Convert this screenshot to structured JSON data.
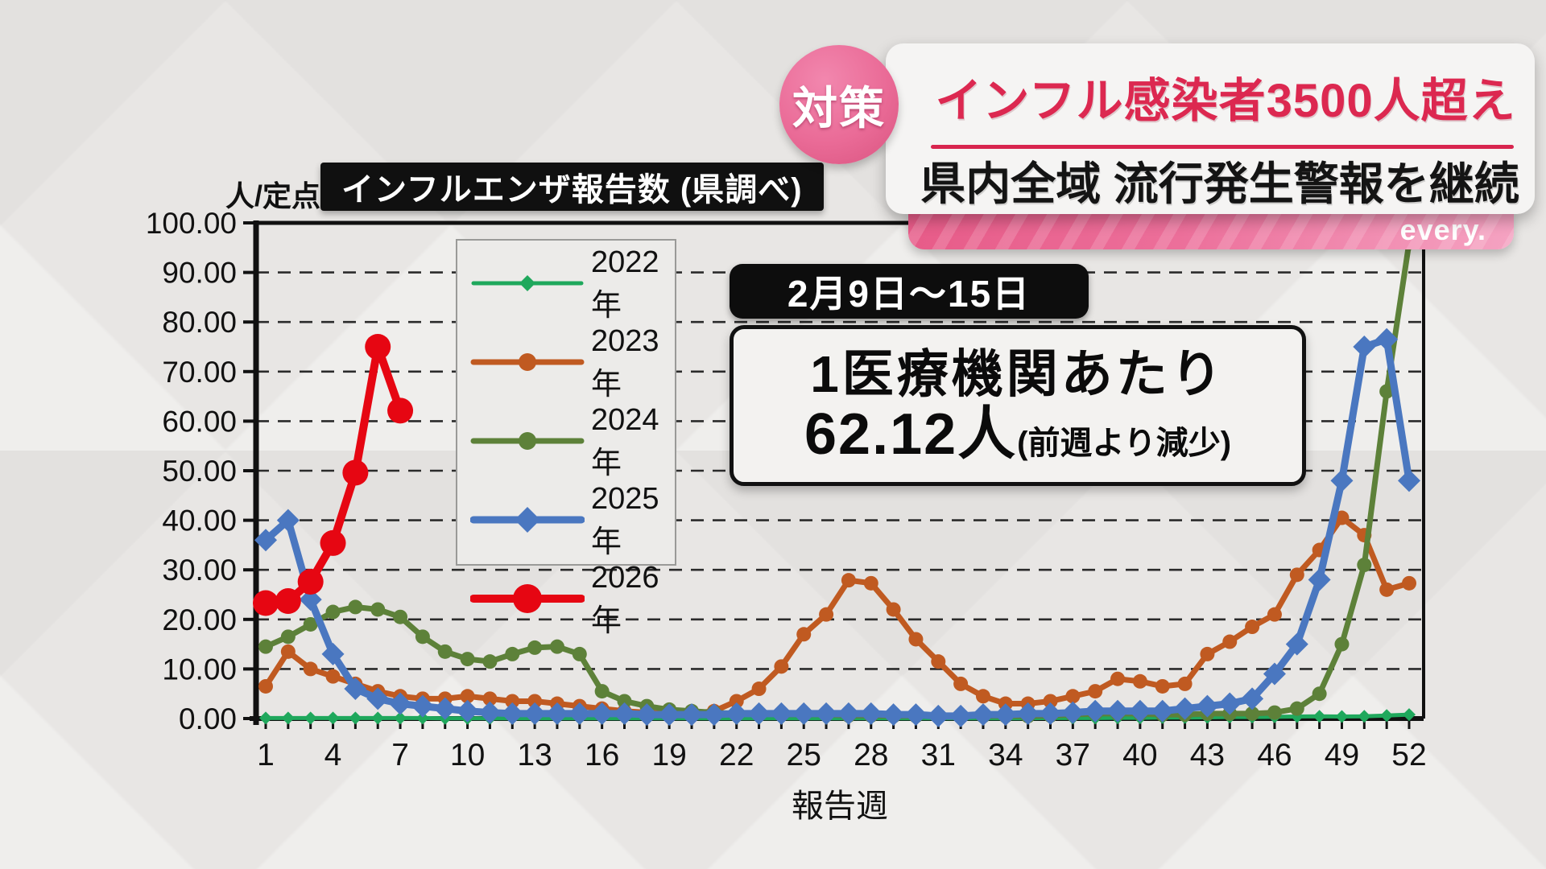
{
  "banner": {
    "badge": "対策",
    "headline": "インフル感染者3500人超え",
    "subheadline": "県内全域 流行発生警報を継続",
    "logo": "every.",
    "colors": {
      "badge_pink": "#ea6b97",
      "headline_red": "#dc2850",
      "bar_pink": "#e75b88"
    }
  },
  "chart": {
    "unit_label": "人/定点",
    "title": "インフルエンザ報告数 (県調べ)",
    "xlabel": "報告週",
    "y_tick_labels": [
      "0.00",
      "10.00",
      "20.00",
      "30.00",
      "40.00",
      "50.00",
      "60.00",
      "70.00",
      "80.00",
      "90.00",
      "100.00"
    ],
    "x_tick_weeks": [
      1,
      4,
      7,
      10,
      13,
      16,
      19,
      22,
      25,
      28,
      31,
      34,
      37,
      40,
      43,
      46,
      49,
      52
    ]
  },
  "callout": {
    "date_range": "2月9日～15日",
    "line1": "1医療機関あたり",
    "value": "62.12人",
    "note": "(前週より減少)"
  },
  "chart_data": {
    "type": "line",
    "title": "インフルエンザ報告数 (県調べ)",
    "xlabel": "報告週",
    "ylabel": "人/定点",
    "ylim": [
      0,
      100
    ],
    "xlim": [
      1,
      52
    ],
    "grid": "horizontal-dashed",
    "legend_position": "upper-left-inside",
    "x": [
      1,
      2,
      3,
      4,
      5,
      6,
      7,
      8,
      9,
      10,
      11,
      12,
      13,
      14,
      15,
      16,
      17,
      18,
      19,
      20,
      21,
      22,
      23,
      24,
      25,
      26,
      27,
      28,
      29,
      30,
      31,
      32,
      33,
      34,
      35,
      36,
      37,
      38,
      39,
      40,
      41,
      42,
      43,
      44,
      45,
      46,
      47,
      48,
      49,
      50,
      51,
      52
    ],
    "series": [
      {
        "name": "2022年",
        "color": "#1fa85c",
        "marker": "diamond",
        "line_width": 5,
        "marker_size": 8,
        "values": [
          0.1,
          0.1,
          0.1,
          0.1,
          0.1,
          0.1,
          0.1,
          0.1,
          0.05,
          0.05,
          0.05,
          0.05,
          0.05,
          0.05,
          0.05,
          0.05,
          0.05,
          0.05,
          0.05,
          0.05,
          0.05,
          0.05,
          0.05,
          0.05,
          0.05,
          0.05,
          0.05,
          0.05,
          0.05,
          0.05,
          0.05,
          0.05,
          0.05,
          0.05,
          0.05,
          0.1,
          0.1,
          0.1,
          0.15,
          0.15,
          0.2,
          0.2,
          0.25,
          0.3,
          0.3,
          0.35,
          0.4,
          0.45,
          0.4,
          0.45,
          0.6,
          0.8
        ]
      },
      {
        "name": "2023年",
        "color": "#c05a21",
        "marker": "circle",
        "line_width": 7,
        "marker_size": 9,
        "values": [
          6.5,
          13.5,
          10.0,
          8.5,
          7.0,
          5.5,
          4.5,
          4.0,
          4.0,
          4.5,
          4.0,
          3.5,
          3.5,
          3.0,
          2.5,
          2.0,
          1.5,
          1.2,
          1.0,
          1.0,
          1.5,
          3.5,
          6.0,
          10.5,
          17.0,
          21.0,
          27.9,
          27.3,
          22.0,
          16.0,
          11.5,
          7.0,
          4.5,
          3.0,
          3.0,
          3.5,
          4.5,
          5.5,
          8.0,
          7.5,
          6.5,
          7.0,
          13.0,
          15.5,
          18.5,
          21.0,
          29.0,
          34.0,
          40.5,
          37.0,
          26.0,
          27.3
        ]
      },
      {
        "name": "2024年",
        "color": "#5d8139",
        "marker": "circle",
        "line_width": 7,
        "marker_size": 9,
        "values": [
          14.5,
          16.5,
          19.0,
          21.5,
          22.5,
          22.0,
          20.5,
          16.5,
          13.5,
          12.0,
          11.5,
          13.0,
          14.3,
          14.5,
          13.0,
          5.5,
          3.5,
          2.5,
          1.8,
          1.5,
          1.2,
          1.0,
          1.0,
          0.8,
          0.8,
          0.8,
          0.6,
          0.6,
          0.5,
          0.5,
          0.5,
          0.5,
          0.5,
          0.5,
          0.5,
          0.6,
          0.8,
          1.0,
          1.0,
          1.0,
          0.8,
          0.8,
          1.0,
          1.0,
          1.0,
          1.2,
          2.0,
          5.0,
          15.0,
          31.0,
          66.0,
          96.0
        ]
      },
      {
        "name": "2025年",
        "color": "#4a77c0",
        "marker": "diamond",
        "line_width": 9,
        "marker_size": 14,
        "values": [
          36.0,
          40.0,
          24.0,
          13.0,
          6.0,
          4.0,
          3.0,
          2.5,
          2.0,
          1.5,
          1.2,
          1.0,
          1.0,
          1.0,
          1.0,
          1.0,
          1.0,
          0.8,
          0.8,
          0.8,
          0.8,
          1.0,
          1.0,
          1.0,
          1.0,
          1.0,
          1.0,
          1.0,
          0.8,
          0.8,
          0.5,
          0.5,
          0.8,
          0.8,
          1.0,
          1.0,
          1.2,
          1.5,
          1.5,
          1.5,
          1.5,
          2.0,
          2.5,
          3.0,
          4.0,
          9.0,
          15.0,
          28.0,
          48.0,
          75.0,
          76.5,
          48.0
        ]
      },
      {
        "name": "2026年",
        "color": "#e60612",
        "marker": "circle",
        "line_width": 10,
        "marker_size": 16,
        "values": [
          23.3,
          23.7,
          27.6,
          35.4,
          49.6,
          75.0,
          62.12
        ]
      }
    ]
  }
}
